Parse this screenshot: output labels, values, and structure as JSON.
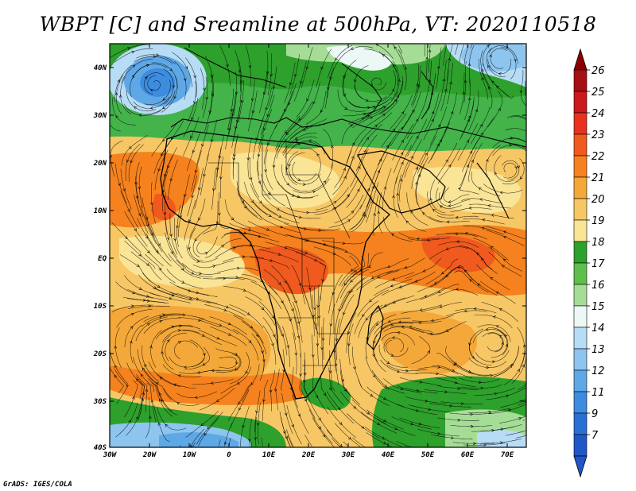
{
  "title": "WBPT [C] and Sreamline at 500hPa, VT: 2020110518",
  "footer": "GrADS: IGES/COLA",
  "map": {
    "lon_ticks": [
      "30W",
      "20W",
      "10W",
      "0",
      "10E",
      "20E",
      "30E",
      "40E",
      "50E",
      "60E",
      "70E"
    ],
    "lat_ticks": [
      "40N",
      "30N",
      "20N",
      "10N",
      "EQ",
      "10S",
      "20S",
      "30S",
      "40S"
    ]
  },
  "colorbar": {
    "labels": [
      "26",
      "25",
      "24",
      "23",
      "22",
      "21",
      "20",
      "19",
      "18",
      "17",
      "16",
      "15",
      "14",
      "13",
      "12",
      "11",
      "9",
      "7"
    ],
    "colors": [
      "#a50f15",
      "#cb181d",
      "#e8321e",
      "#f05a1e",
      "#f5821e",
      "#f4a83a",
      "#f7c766",
      "#fae496",
      "#2ea02c",
      "#5fbf4a",
      "#a6dd96",
      "#ebf8f5",
      "#b7dcf5",
      "#8dc5ef",
      "#5fa8e6",
      "#3d8ce0",
      "#2a6fd6",
      "#1f57c9"
    ],
    "arrow_top_color": "#8b0000",
    "arrow_bottom_color": "#1f57c9"
  }
}
